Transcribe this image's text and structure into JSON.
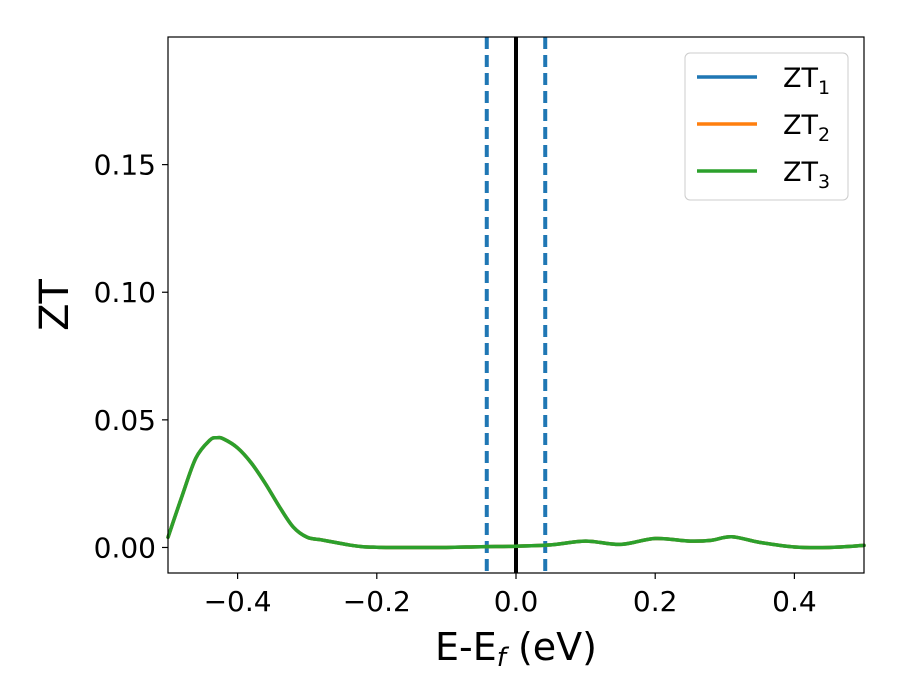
{
  "chart_data": {
    "type": "line",
    "xlabel_main": "E-E",
    "xlabel_sub": "f",
    "xlabel_unit": " (eV)",
    "ylabel": "ZT",
    "xlim": [
      -0.5,
      0.5
    ],
    "ylim": [
      -0.01,
      0.2
    ],
    "xticks": [
      {
        "value": -0.4,
        "label": "−0.4"
      },
      {
        "value": -0.2,
        "label": "−0.2"
      },
      {
        "value": 0.0,
        "label": "0.0"
      },
      {
        "value": 0.2,
        "label": "0.2"
      },
      {
        "value": 0.4,
        "label": "0.4"
      }
    ],
    "yticks": [
      {
        "value": 0.0,
        "label": "0.00"
      },
      {
        "value": 0.05,
        "label": "0.05"
      },
      {
        "value": 0.1,
        "label": "0.10"
      },
      {
        "value": 0.15,
        "label": "0.15"
      }
    ],
    "grid": false,
    "legend_position": "top-right",
    "vlines": [
      {
        "x": 0.0,
        "style": "solid",
        "color": "#000000"
      },
      {
        "x": -0.042,
        "style": "dashed",
        "color": "#1f77b4"
      },
      {
        "x": 0.042,
        "style": "dashed",
        "color": "#1f77b4"
      }
    ],
    "x": [
      -0.5,
      -0.48,
      -0.46,
      -0.44,
      -0.43,
      -0.42,
      -0.4,
      -0.38,
      -0.36,
      -0.34,
      -0.32,
      -0.3,
      -0.28,
      -0.26,
      -0.24,
      -0.22,
      -0.2,
      -0.18,
      -0.15,
      -0.1,
      -0.05,
      0.0,
      0.05,
      0.1,
      0.15,
      0.2,
      0.25,
      0.28,
      0.31,
      0.35,
      0.4,
      0.45,
      0.5
    ],
    "series": [
      {
        "name": "ZT",
        "sub": "1",
        "color": "#1f77b4",
        "values": [
          0.004,
          0.02,
          0.035,
          0.042,
          0.043,
          0.0425,
          0.039,
          0.033,
          0.025,
          0.016,
          0.008,
          0.004,
          0.003,
          0.002,
          0.001,
          0.0003,
          0.0001,
          0.0,
          0.0,
          0.0,
          0.0003,
          0.0005,
          0.001,
          0.0025,
          0.0012,
          0.0035,
          0.0025,
          0.0028,
          0.0042,
          0.002,
          0.0002,
          0.0,
          0.0008
        ]
      },
      {
        "name": "ZT",
        "sub": "2",
        "color": "#ff7f0e",
        "values": [
          0.004,
          0.02,
          0.035,
          0.042,
          0.043,
          0.0425,
          0.039,
          0.033,
          0.025,
          0.016,
          0.008,
          0.004,
          0.003,
          0.002,
          0.001,
          0.0003,
          0.0001,
          0.0,
          0.0,
          0.0,
          0.0003,
          0.0005,
          0.001,
          0.0025,
          0.0012,
          0.0035,
          0.0025,
          0.0028,
          0.0042,
          0.002,
          0.0002,
          0.0,
          0.0008
        ]
      },
      {
        "name": "ZT",
        "sub": "3",
        "color": "#2ca02c",
        "values": [
          0.004,
          0.02,
          0.035,
          0.042,
          0.043,
          0.0425,
          0.039,
          0.033,
          0.025,
          0.016,
          0.008,
          0.004,
          0.003,
          0.002,
          0.001,
          0.0003,
          0.0001,
          0.0,
          0.0,
          0.0,
          0.0003,
          0.0005,
          0.001,
          0.0025,
          0.0012,
          0.0035,
          0.0025,
          0.0028,
          0.0042,
          0.002,
          0.0002,
          0.0,
          0.0008
        ]
      }
    ]
  }
}
